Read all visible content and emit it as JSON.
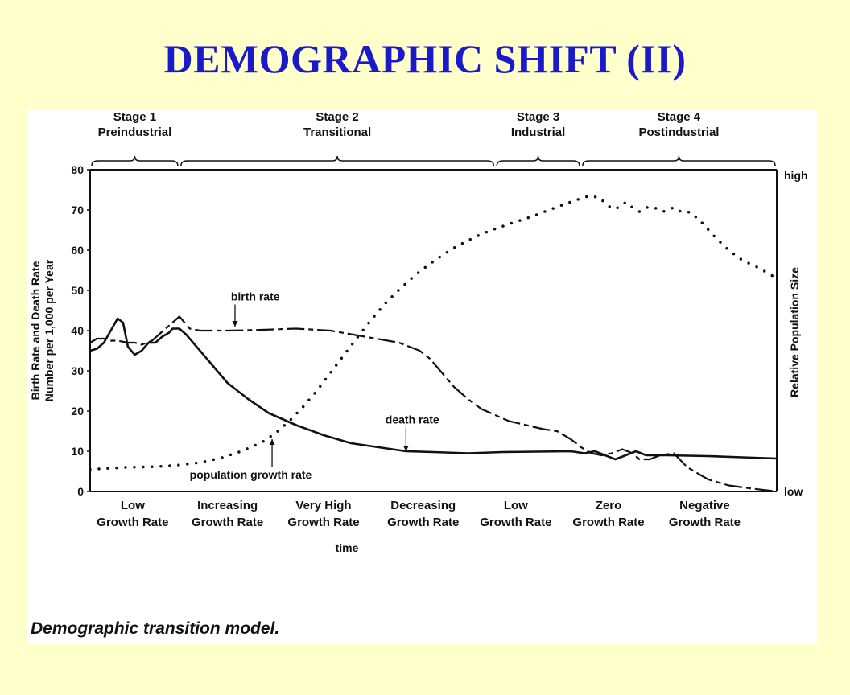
{
  "slide": {
    "title": "DEMOGRAPHIC SHIFT (II)"
  },
  "chart_data": {
    "type": "line",
    "xlabel": "time",
    "ylabel_lines": [
      "Birth Rate and Death Rate",
      "Number per 1,000 per Year"
    ],
    "y2label": "Relative Population Size",
    "y2_ticks": [
      "high",
      "low"
    ],
    "ylim": [
      0,
      80
    ],
    "y_ticks": [
      0,
      10,
      20,
      30,
      40,
      50,
      60,
      70,
      80
    ],
    "x_range": [
      0,
      10
    ],
    "caption": "Demographic transition model.",
    "stages": [
      {
        "name": "Stage 1",
        "label": "Preindustrial",
        "x_start": 0,
        "x_end": 1.3
      },
      {
        "name": "Stage 2",
        "label": "Transitional",
        "x_start": 1.3,
        "x_end": 5.9
      },
      {
        "name": "Stage 3",
        "label": "Industrial",
        "x_start": 5.9,
        "x_end": 7.15
      },
      {
        "name": "Stage 4",
        "label": "Postindustrial",
        "x_start": 7.15,
        "x_end": 10
      }
    ],
    "growth_phases": [
      {
        "line1": "Low",
        "line2": "Growth Rate",
        "x": 0.62
      },
      {
        "line1": "Increasing",
        "line2": "Growth Rate",
        "x": 2.0
      },
      {
        "line1": "Very High",
        "line2": "Growth Rate",
        "x": 3.4
      },
      {
        "line1": "Decreasing",
        "line2": "Growth Rate",
        "x": 4.85
      },
      {
        "line1": "Low",
        "line2": "Growth Rate",
        "x": 6.2
      },
      {
        "line1": "Zero",
        "line2": "Growth Rate",
        "x": 7.55
      },
      {
        "line1": "Negative",
        "line2": "Growth Rate",
        "x": 8.95
      }
    ],
    "series": [
      {
        "name": "birth rate",
        "style": "dashed",
        "x": [
          0,
          0.1,
          0.2,
          0.3,
          0.4,
          0.55,
          0.65,
          0.75,
          0.9,
          1.0,
          1.1,
          1.2,
          1.3,
          1.45,
          1.6,
          2.0,
          2.5,
          3.0,
          3.5,
          4.0,
          4.5,
          4.8,
          4.95,
          5.1,
          5.3,
          5.5,
          5.7,
          5.9,
          6.1,
          6.35,
          6.6,
          6.8,
          7.0,
          7.15,
          7.3,
          7.45,
          7.6,
          7.75,
          7.9,
          8.0,
          8.15,
          8.3,
          8.5,
          8.7,
          9.0,
          9.3,
          9.6,
          10.0
        ],
        "y": [
          37,
          38,
          38,
          37.5,
          37.5,
          37,
          37,
          36.5,
          37.5,
          39,
          40.5,
          42,
          43.5,
          40.5,
          40,
          40,
          40.2,
          40.5,
          40,
          38.5,
          37,
          35,
          33,
          30,
          26,
          23,
          20.5,
          19,
          17.5,
          16.5,
          15.5,
          15,
          13,
          11,
          9.5,
          9,
          9.5,
          10.5,
          9.5,
          8,
          8,
          9,
          9.5,
          6,
          3,
          1.5,
          0.8,
          0
        ]
      },
      {
        "name": "death rate",
        "style": "solid",
        "x": [
          0,
          0.1,
          0.2,
          0.3,
          0.4,
          0.48,
          0.55,
          0.65,
          0.75,
          0.85,
          0.95,
          1.05,
          1.15,
          1.2,
          1.3,
          1.4,
          1.6,
          1.8,
          2.0,
          2.3,
          2.6,
          3.0,
          3.4,
          3.8,
          4.2,
          4.6,
          5.0,
          5.5,
          6.0,
          6.5,
          7.0,
          7.2,
          7.35,
          7.5,
          7.65,
          7.8,
          7.95,
          8.1,
          8.4,
          9.0,
          9.5,
          10.0
        ],
        "y": [
          35,
          35.5,
          37,
          40,
          43,
          42,
          36,
          34,
          35,
          37,
          37,
          38.5,
          39.5,
          40.5,
          40.5,
          39,
          35,
          31,
          27,
          23,
          19.5,
          16.5,
          14,
          12,
          11,
          10,
          9.8,
          9.5,
          9.8,
          9.9,
          10,
          9.5,
          10,
          9,
          8,
          9,
          10,
          9,
          9,
          8.8,
          8.5,
          8.2
        ]
      },
      {
        "name": "population growth rate",
        "style": "dotted",
        "x": [
          0,
          0.5,
          1.0,
          1.3,
          1.6,
          1.9,
          2.2,
          2.5,
          2.7,
          2.9,
          3.1,
          3.3,
          3.5,
          3.7,
          3.9,
          4.1,
          4.3,
          4.5,
          4.7,
          4.9,
          5.1,
          5.3,
          5.5,
          5.7,
          5.9,
          6.1,
          6.3,
          6.5,
          6.7,
          6.9,
          7.1,
          7.25,
          7.4,
          7.5,
          7.6,
          7.7,
          7.8,
          7.9,
          8.0,
          8.1,
          8.2,
          8.35,
          8.5,
          8.6,
          8.75,
          8.9,
          9.1,
          9.3,
          9.5,
          9.75,
          10.0
        ],
        "y": [
          5.5,
          6,
          6.2,
          6.6,
          7.2,
          8.3,
          10,
          12.2,
          14.5,
          17.5,
          21,
          25,
          29.5,
          34,
          38.5,
          42.8,
          46.8,
          50.2,
          53.3,
          56,
          58.4,
          60.6,
          62.4,
          64,
          65.3,
          66.5,
          67.6,
          68.8,
          70.1,
          71.4,
          72.6,
          73.4,
          73.2,
          71.8,
          70.3,
          70.6,
          71.9,
          70.6,
          69.6,
          70.6,
          70.7,
          69.6,
          70.6,
          69.6,
          69.4,
          67,
          63.3,
          60,
          57.5,
          55.5,
          53
        ]
      }
    ],
    "annotations": [
      {
        "text": "birth rate",
        "x": 2.05,
        "y": 47.5,
        "arrow_to": [
          2.11,
          41
        ]
      },
      {
        "text": "death rate",
        "x": 4.3,
        "y": 16.9,
        "arrow_to": [
          4.6,
          10
        ]
      },
      {
        "text": "population growth rate",
        "x": 1.45,
        "y": 3.2,
        "arrow_to": [
          2.65,
          13
        ]
      }
    ]
  }
}
